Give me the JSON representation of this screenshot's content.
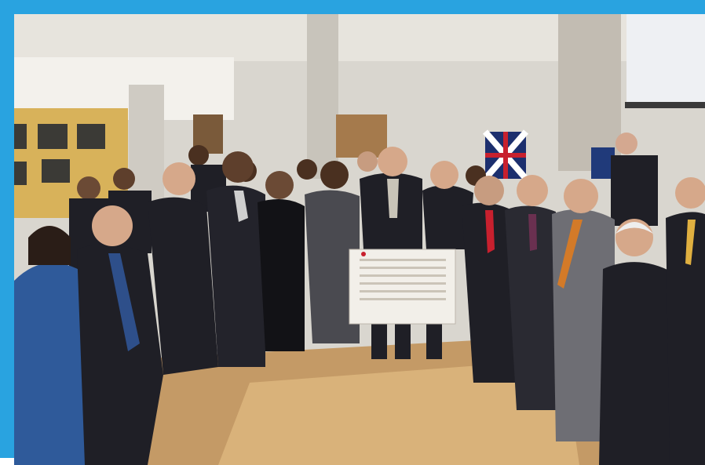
{
  "image": {
    "subject": "group-photo",
    "frame_color": "#29a3e0",
    "wall_color": "#d9d6cf",
    "floor_color": "#c49a66",
    "yellow_wall_color": "#d8b25a",
    "suit_color": "#1f1f26",
    "poster_color": "#f2efe9",
    "banner_text": ""
  }
}
